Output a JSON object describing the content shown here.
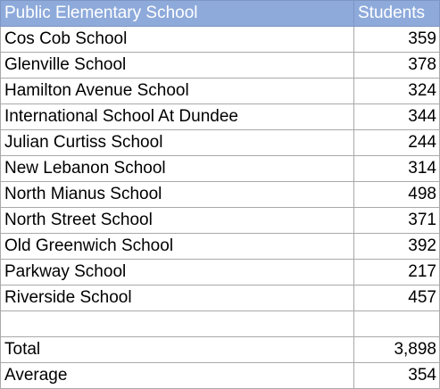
{
  "header": {
    "name_label": "Public Elementary School",
    "count_label": "Students"
  },
  "rows": [
    {
      "name": "Cos Cob School",
      "students": "359"
    },
    {
      "name": "Glenville School",
      "students": "378"
    },
    {
      "name": "Hamilton Avenue School",
      "students": "324"
    },
    {
      "name": "International School At Dundee",
      "students": "344"
    },
    {
      "name": "Julian Curtiss School",
      "students": "244"
    },
    {
      "name": "New Lebanon School",
      "students": "314"
    },
    {
      "name": "North Mianus School",
      "students": "498"
    },
    {
      "name": "North Street School",
      "students": "371"
    },
    {
      "name": "Old Greenwich School",
      "students": "392"
    },
    {
      "name": "Parkway School",
      "students": "217"
    },
    {
      "name": "Riverside School",
      "students": "457"
    }
  ],
  "summary": {
    "total_label": "Total",
    "total_value": "3,898",
    "average_label": "Average",
    "average_value": "354"
  },
  "colors": {
    "header_fill": "#8eaadb",
    "header_text": "#ffffff",
    "grid_line": "#a9a9a9"
  }
}
